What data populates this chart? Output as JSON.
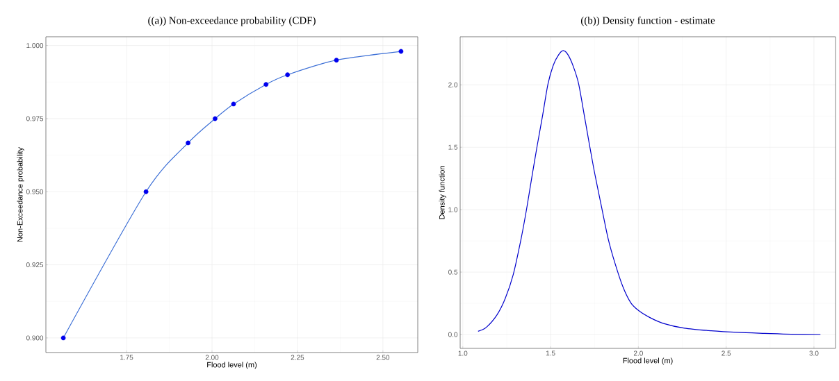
{
  "chart_data": [
    {
      "type": "line",
      "title": "((a))    Non-exceedance probability (CDF)",
      "xlabel": "Flood level (m)",
      "ylabel": "Non-Exceedance probability",
      "grid": true,
      "xlim": [
        1.514,
        2.602
      ],
      "ylim": [
        0.895,
        1.003
      ],
      "xticks": [
        1.75,
        {
          "value": 2.0,
          "label": "2.00"
        },
        2.25,
        {
          "value": 2.5,
          "label": "2.50"
        }
      ],
      "yticks": [
        {
          "value": 0.9,
          "label": "0.900"
        },
        0.925,
        {
          "value": 0.95,
          "label": "0.950"
        },
        0.975,
        {
          "value": 1.0,
          "label": "1.000"
        }
      ],
      "series": [
        {
          "color": "#3c6fd6",
          "x": [
            1.565,
            1.807,
            1.93,
            2.009,
            2.063,
            2.158,
            2.221,
            2.364,
            2.553
          ],
          "values": [
            0.9,
            0.95,
            0.9667,
            0.975,
            0.98,
            0.9867,
            0.99,
            0.995,
            0.998
          ]
        },
        {
          "type": "scatter",
          "marker": "circle",
          "color": "#0000ee",
          "x": [
            1.565,
            1.807,
            1.93,
            2.009,
            2.063,
            2.158,
            2.221,
            2.364,
            2.553
          ],
          "values": [
            0.9,
            0.95,
            0.9667,
            0.975,
            0.98,
            0.9867,
            0.99,
            0.995,
            0.998
          ]
        }
      ]
    },
    {
      "type": "line",
      "title": "((b))    Density function - estimate",
      "xlabel": "Flood level (m)",
      "ylabel": "Density function",
      "grid": true,
      "xlim": [
        0.985,
        3.123
      ],
      "ylim": [
        -0.111,
        2.385
      ],
      "xticks": [
        {
          "value": 1.0,
          "label": "1.0"
        },
        1.5,
        {
          "value": 2.0,
          "label": "2.0"
        },
        2.5,
        {
          "value": 3.0,
          "label": "3.0"
        }
      ],
      "yticks": [
        {
          "value": 0.0,
          "label": "0.0"
        },
        0.5,
        {
          "value": 1.0,
          "label": "1.0"
        },
        1.5,
        {
          "value": 2.0,
          "label": "2.0"
        }
      ],
      "series": [
        {
          "color": "#0000cc",
          "x": [
            1.087,
            1.134,
            1.195,
            1.241,
            1.287,
            1.332,
            1.363,
            1.393,
            1.424,
            1.454,
            1.485,
            1.515,
            1.546,
            1.572,
            1.599,
            1.63,
            1.66,
            1.698,
            1.744,
            1.79,
            1.828,
            1.866,
            1.912,
            1.957,
            2.003,
            2.064,
            2.14,
            2.262,
            2.415,
            2.567,
            2.72,
            2.872,
            3.037
          ],
          "values": [
            0.026,
            0.058,
            0.158,
            0.286,
            0.479,
            0.767,
            1.002,
            1.259,
            1.515,
            1.75,
            2.006,
            2.156,
            2.241,
            2.274,
            2.241,
            2.145,
            2.006,
            1.707,
            1.344,
            1.024,
            0.767,
            0.575,
            0.382,
            0.254,
            0.19,
            0.137,
            0.09,
            0.051,
            0.03,
            0.017,
            0.009,
            0.002,
            0.0
          ]
        }
      ]
    }
  ]
}
